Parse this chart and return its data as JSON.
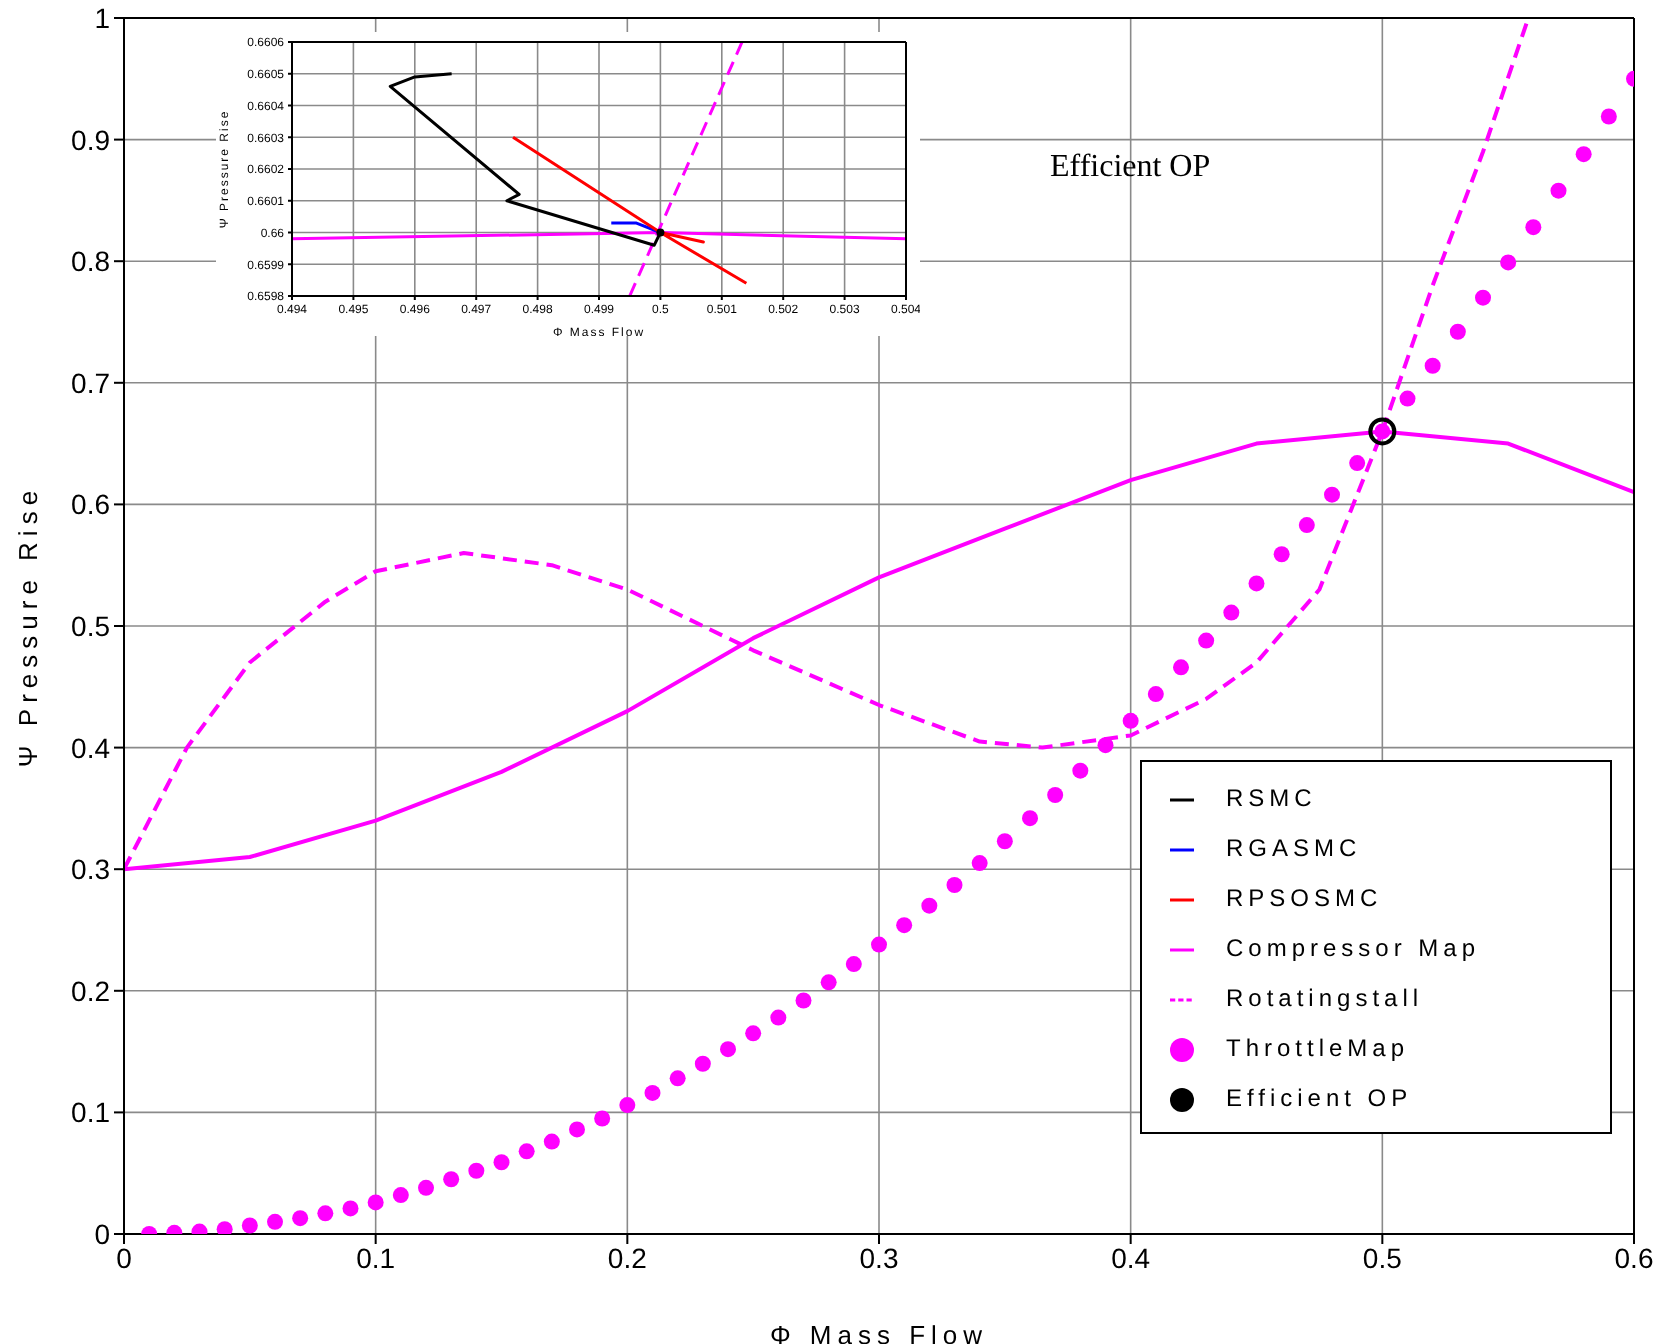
{
  "chart_data": [
    {
      "type": "line",
      "xlabel": "Φ Mass Flow",
      "ylabel": "Ψ Pressure Rise",
      "xlim": [
        0,
        0.6
      ],
      "xticks": [
        0,
        0.1,
        0.2,
        0.3,
        0.4,
        0.5,
        0.6
      ],
      "ylim": [
        0,
        1
      ],
      "yticks": [
        0,
        0.1,
        0.2,
        0.3,
        0.4,
        0.5,
        0.6,
        0.7,
        0.8,
        0.9,
        1
      ],
      "grid": true,
      "legend": "bottom right",
      "annotations": [
        "Efficient OP"
      ],
      "series": [
        {
          "name": "RSMC",
          "color": "#000000",
          "type": "line",
          "line_style": "solid",
          "marker": "none"
        },
        {
          "name": "RGASMC",
          "color": "#0000ff",
          "type": "line",
          "line_style": "solid",
          "marker": "none"
        },
        {
          "name": "RPSOSMC",
          "color": "#ff0000",
          "type": "line",
          "line_style": "solid",
          "marker": "none"
        },
        {
          "name": "Compressor Map",
          "color": "#ff00ff",
          "type": "line",
          "line_style": "solid",
          "marker": "none",
          "x": [
            0,
            0.05,
            0.1,
            0.15,
            0.2,
            0.25,
            0.3,
            0.35,
            0.4,
            0.45,
            0.5,
            0.55,
            0.6
          ],
          "values": [
            0.3,
            0.31,
            0.34,
            0.38,
            0.43,
            0.49,
            0.54,
            0.58,
            0.62,
            0.65,
            0.66,
            0.65,
            0.61
          ]
        },
        {
          "name": "Rotatingstall",
          "color": "#ff00ff",
          "type": "line",
          "line_style": "dashed",
          "marker": "none",
          "x": [
            0,
            0.025,
            0.05,
            0.08,
            0.1,
            0.135,
            0.17,
            0.2,
            0.25,
            0.3,
            0.34,
            0.365,
            0.4,
            0.43,
            0.45,
            0.475,
            0.5,
            0.52,
            0.54,
            0.558
          ],
          "values": [
            0.3,
            0.4,
            0.47,
            0.52,
            0.545,
            0.56,
            0.55,
            0.53,
            0.48,
            0.435,
            0.405,
            0.4,
            0.41,
            0.44,
            0.47,
            0.53,
            0.66,
            0.78,
            0.89,
            1.0
          ]
        },
        {
          "name": "ThrottleMap",
          "color": "#ff00ff",
          "type": "scatter",
          "marker": "circle",
          "x": [
            0.01,
            0.02,
            0.03,
            0.04,
            0.05,
            0.06,
            0.07,
            0.08,
            0.09,
            0.1,
            0.11,
            0.12,
            0.13,
            0.14,
            0.15,
            0.16,
            0.17,
            0.18,
            0.19,
            0.2,
            0.21,
            0.22,
            0.23,
            0.24,
            0.25,
            0.26,
            0.27,
            0.28,
            0.29,
            0.3,
            0.31,
            0.32,
            0.33,
            0.34,
            0.35,
            0.36,
            0.37,
            0.38,
            0.39,
            0.4,
            0.41,
            0.42,
            0.43,
            0.44,
            0.45,
            0.46,
            0.47,
            0.48,
            0.49,
            0.5,
            0.51,
            0.52,
            0.53,
            0.54,
            0.55,
            0.56,
            0.57,
            0.58,
            0.59,
            0.6
          ],
          "values": [
            0.0,
            0.001,
            0.002,
            0.004,
            0.007,
            0.01,
            0.013,
            0.017,
            0.021,
            0.026,
            0.032,
            0.038,
            0.045,
            0.052,
            0.059,
            0.068,
            0.076,
            0.086,
            0.095,
            0.106,
            0.116,
            0.128,
            0.14,
            0.152,
            0.165,
            0.178,
            0.192,
            0.207,
            0.222,
            0.238,
            0.254,
            0.27,
            0.287,
            0.305,
            0.323,
            0.342,
            0.361,
            0.381,
            0.402,
            0.422,
            0.444,
            0.466,
            0.488,
            0.511,
            0.535,
            0.559,
            0.583,
            0.608,
            0.634,
            0.66,
            0.687,
            0.714,
            0.742,
            0.77,
            0.799,
            0.828,
            0.858,
            0.888,
            0.919,
            0.95
          ]
        },
        {
          "name": "Efficient OP",
          "color": "#000000",
          "type": "scatter",
          "marker": "circle",
          "x": [
            0.5
          ],
          "values": [
            0.66
          ]
        }
      ]
    },
    {
      "type": "line",
      "xlabel": "Φ Mass Flow",
      "ylabel": "Ψ Pressure Rise",
      "xlim": [
        0.494,
        0.504
      ],
      "xticks": [
        0.494,
        0.495,
        0.496,
        0.497,
        0.498,
        0.499,
        0.5,
        0.501,
        0.502,
        0.503,
        0.504
      ],
      "ylim": [
        0.6598,
        0.6606
      ],
      "yticks": [
        0.6598,
        0.6599,
        0.66,
        0.6601,
        0.6602,
        0.6603,
        0.6604,
        0.6605,
        0.6606
      ],
      "grid": true,
      "series": [
        {
          "color": "#ff00ff",
          "type": "line",
          "line_style": "solid",
          "marker": "none",
          "x": [
            0.494,
            0.5,
            0.504
          ],
          "values": [
            0.65998,
            0.66,
            0.65998
          ]
        },
        {
          "color": "#ff00ff",
          "type": "line",
          "line_style": "dashed",
          "marker": "none",
          "x": [
            0.4995,
            0.50133
          ],
          "values": [
            0.6598,
            0.6606
          ]
        },
        {
          "color": "#000000",
          "type": "line",
          "line_style": "solid",
          "marker": "none",
          "x": [
            0.4966,
            0.496,
            0.4956,
            0.4977,
            0.4975,
            0.4999,
            0.5
          ],
          "values": [
            0.6605,
            0.66049,
            0.66046,
            0.66012,
            0.6601,
            0.65996,
            0.66
          ]
        },
        {
          "color": "#0000ff",
          "type": "line",
          "line_style": "solid",
          "marker": "none",
          "x": [
            0.4992,
            0.4996,
            0.5
          ],
          "values": [
            0.66003,
            0.66003,
            0.66
          ]
        },
        {
          "color": "#ff0000",
          "type": "line",
          "line_style": "solid",
          "marker": "none",
          "x": [
            0.4976,
            0.5,
            0.5007,
            0.5,
            0.5014
          ],
          "values": [
            0.6603,
            0.66,
            0.65997,
            0.66,
            0.65984
          ]
        },
        {
          "color": "#000000",
          "type": "scatter",
          "marker": "circle",
          "x": [
            0.5
          ],
          "values": [
            0.66
          ]
        }
      ]
    }
  ]
}
